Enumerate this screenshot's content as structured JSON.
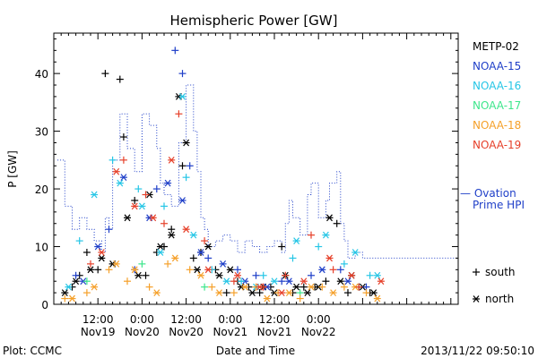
{
  "chart_data": {
    "type": "scatter",
    "title": "Hemispheric Power [GW]",
    "xlabel": "Date and Time",
    "ylabel": "P [GW]",
    "ylim": [
      0,
      47
    ],
    "xlim_hours": [
      0,
      110
    ],
    "yticks": [
      0,
      10,
      20,
      30,
      40
    ],
    "xticks": [
      {
        "h": 12,
        "l1": "12:00",
        "l2": "Nov19"
      },
      {
        "h": 24,
        "l1": "0:00",
        "l2": "Nov20"
      },
      {
        "h": 36,
        "l1": "12:00",
        "l2": "Nov20"
      },
      {
        "h": 48,
        "l1": "0:00",
        "l2": "Nov21"
      },
      {
        "h": 60,
        "l1": "12:00",
        "l2": "Nov21"
      },
      {
        "h": 72,
        "l1": "0:00",
        "l2": "Nov22"
      }
    ],
    "footer_left": "Plot: CCMC",
    "footer_right": "2013/11/22 09:50:10",
    "legend_position": "right",
    "satellites": [
      {
        "name": "METP-02",
        "color": "#000000"
      },
      {
        "name": "NOAA-15",
        "color": "#1f3fc8"
      },
      {
        "name": "NOAA-16",
        "color": "#26c6e6"
      },
      {
        "name": "NOAA-17",
        "color": "#3ee68c"
      },
      {
        "name": "NOAA-18",
        "color": "#f5a02a"
      },
      {
        "name": "NOAA-19",
        "color": "#e6402a"
      }
    ],
    "ovation": {
      "label_line1": "— Ovation",
      "label_line2": "Prime HPI",
      "color": "#1f3fc8",
      "steps": [
        [
          1,
          25
        ],
        [
          3,
          17
        ],
        [
          5,
          13
        ],
        [
          7,
          15
        ],
        [
          9,
          13
        ],
        [
          11,
          11
        ],
        [
          13,
          9
        ],
        [
          14,
          15
        ],
        [
          15,
          13
        ],
        [
          16,
          25
        ],
        [
          18,
          33
        ],
        [
          20,
          27
        ],
        [
          22,
          23
        ],
        [
          24,
          33
        ],
        [
          26,
          31
        ],
        [
          28,
          27
        ],
        [
          29,
          21
        ],
        [
          30,
          19
        ],
        [
          32,
          17
        ],
        [
          34,
          28
        ],
        [
          36,
          38
        ],
        [
          38,
          30
        ],
        [
          39,
          23
        ],
        [
          40,
          15
        ],
        [
          41,
          13
        ],
        [
          42,
          10
        ],
        [
          44,
          11
        ],
        [
          46,
          12
        ],
        [
          48,
          11
        ],
        [
          50,
          9
        ],
        [
          52,
          11
        ],
        [
          54,
          10
        ],
        [
          56,
          9
        ],
        [
          58,
          10
        ],
        [
          60,
          11
        ],
        [
          62,
          9
        ],
        [
          63,
          14
        ],
        [
          64,
          18
        ],
        [
          65,
          15
        ],
        [
          67,
          12
        ],
        [
          69,
          19
        ],
        [
          70,
          21
        ],
        [
          72,
          15
        ],
        [
          74,
          18
        ],
        [
          75,
          21
        ],
        [
          77,
          23
        ],
        [
          78,
          14
        ],
        [
          79,
          11
        ],
        [
          80,
          8
        ],
        [
          82,
          9
        ],
        [
          84,
          8
        ],
        [
          88,
          8
        ]
      ]
    },
    "series": [
      {
        "sat": "METP-02",
        "marker": "+",
        "x": [
          5,
          7,
          9,
          12,
          14,
          18,
          19,
          22,
          25,
          28,
          30,
          32,
          35,
          38,
          40,
          44,
          47,
          50,
          53,
          56,
          59,
          62,
          65,
          68,
          71,
          74,
          77,
          80,
          83,
          86
        ],
        "y": [
          3,
          5,
          9,
          6,
          40,
          39,
          29,
          18,
          5,
          9,
          10,
          13,
          24,
          8,
          9,
          6,
          2,
          4,
          3,
          2,
          3,
          10,
          2,
          3,
          3,
          4,
          14,
          2,
          3,
          2
        ]
      },
      {
        "sat": "METP-02",
        "marker": "*",
        "x": [
          3,
          6,
          10,
          13,
          16,
          20,
          23,
          26,
          29,
          32,
          34,
          36,
          39,
          42,
          45,
          48,
          51,
          54,
          57,
          60,
          63,
          66,
          69,
          72,
          75,
          78,
          81,
          84,
          87
        ],
        "y": [
          2,
          4,
          6,
          8,
          7,
          15,
          5,
          19,
          10,
          12,
          36,
          28,
          6,
          10,
          5,
          6,
          3,
          2,
          3,
          2,
          5,
          3,
          2,
          3,
          15,
          4,
          5,
          3,
          2
        ]
      },
      {
        "sat": "NOAA-15",
        "marker": "+",
        "x": [
          6,
          15,
          22,
          28,
          33,
          35,
          37,
          42,
          50,
          55,
          62,
          70,
          78,
          85
        ],
        "y": [
          5,
          13,
          6,
          20,
          44,
          40,
          24,
          8,
          6,
          5,
          4,
          5,
          6,
          3
        ]
      },
      {
        "sat": "NOAA-15",
        "marker": "*",
        "x": [
          8,
          12,
          19,
          26,
          31,
          35,
          40,
          46,
          52,
          58,
          64,
          73,
          80
        ],
        "y": [
          4,
          10,
          22,
          15,
          21,
          18,
          9,
          7,
          4,
          3,
          4,
          6,
          4
        ]
      },
      {
        "sat": "NOAA-16",
        "marker": "+",
        "x": [
          7,
          16,
          23,
          30,
          36,
          43,
          51,
          57,
          65,
          72,
          79,
          86
        ],
        "y": [
          11,
          25,
          20,
          17,
          22,
          6,
          4,
          5,
          8,
          10,
          7,
          5
        ]
      },
      {
        "sat": "NOAA-16",
        "marker": "*",
        "x": [
          4,
          11,
          18,
          24,
          29,
          35,
          38,
          47,
          55,
          60,
          66,
          74,
          82,
          88
        ],
        "y": [
          3,
          19,
          21,
          17,
          9,
          36,
          12,
          4,
          3,
          4,
          11,
          12,
          9,
          5
        ]
      },
      {
        "sat": "NOAA-17",
        "marker": "+",
        "x": [
          9,
          24,
          41,
          67
        ],
        "y": [
          4,
          7,
          3,
          2
        ]
      },
      {
        "sat": "NOAA-18",
        "marker": "+",
        "x": [
          3,
          9,
          15,
          20,
          26,
          31,
          37,
          43,
          49,
          55,
          61,
          67,
          73,
          79,
          85
        ],
        "y": [
          1,
          2,
          6,
          4,
          3,
          7,
          6,
          3,
          2,
          3,
          2,
          1,
          3,
          3,
          2
        ]
      },
      {
        "sat": "NOAA-18",
        "marker": "*",
        "x": [
          5,
          11,
          17,
          22,
          28,
          33,
          40,
          45,
          52,
          58,
          64,
          70,
          76,
          82,
          88
        ],
        "y": [
          1,
          3,
          7,
          6,
          2,
          8,
          5,
          2,
          3,
          1,
          2,
          3,
          2,
          3,
          1
        ]
      },
      {
        "sat": "NOAA-19",
        "marker": "+",
        "x": [
          10,
          19,
          25,
          30,
          34,
          41,
          49,
          57,
          63,
          70,
          76,
          83
        ],
        "y": [
          7,
          25,
          19,
          14,
          33,
          11,
          4,
          3,
          5,
          12,
          6,
          3
        ]
      },
      {
        "sat": "NOAA-19",
        "marker": "*",
        "x": [
          13,
          17,
          22,
          27,
          32,
          36,
          42,
          50,
          56,
          62,
          68,
          75,
          81,
          89
        ],
        "y": [
          9,
          23,
          17,
          15,
          25,
          13,
          6,
          5,
          3,
          2,
          4,
          8,
          5,
          4
        ]
      }
    ],
    "legend_markers": [
      {
        "symbol": "+",
        "label": "south"
      },
      {
        "symbol": "*",
        "label": "north"
      }
    ]
  }
}
